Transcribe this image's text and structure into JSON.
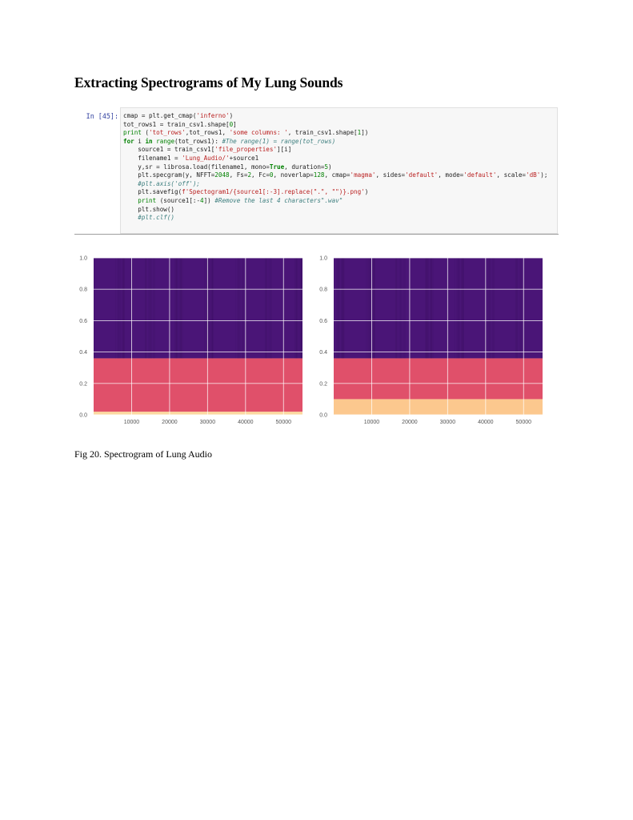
{
  "page": {
    "heading": "Extracting Spectrograms of My Lung Sounds",
    "caption": "Fig 20.  Spectrogram of Lung Audio"
  },
  "notebook": {
    "prompt": "In [45]:",
    "code_lines": [
      [
        {
          "t": "cmap = plt.get_cmap(",
          "c": ""
        },
        {
          "t": "'inferno'",
          "c": "st"
        },
        {
          "t": ")",
          "c": ""
        }
      ],
      [
        {
          "t": "tot_rows1 = train_csv1.shape[",
          "c": ""
        },
        {
          "t": "0",
          "c": "nm"
        },
        {
          "t": "]",
          "c": ""
        }
      ],
      [
        {
          "t": "print",
          "c": "bi"
        },
        {
          "t": " (",
          "c": ""
        },
        {
          "t": "'tot_rows'",
          "c": "st"
        },
        {
          "t": ",tot_rows1, ",
          "c": ""
        },
        {
          "t": "'some columns: '",
          "c": "st"
        },
        {
          "t": ", train_csv1.shape[",
          "c": ""
        },
        {
          "t": "1",
          "c": "nm"
        },
        {
          "t": "])",
          "c": ""
        }
      ],
      [
        {
          "t": "for",
          "c": "kw"
        },
        {
          "t": " i ",
          "c": ""
        },
        {
          "t": "in",
          "c": "kw"
        },
        {
          "t": " ",
          "c": ""
        },
        {
          "t": "range",
          "c": "bi"
        },
        {
          "t": "(tot_rows1): ",
          "c": ""
        },
        {
          "t": "#The range(1) = range(tot_rows)",
          "c": "cm"
        }
      ],
      [
        {
          "t": "    source1 = train_csv1[",
          "c": ""
        },
        {
          "t": "'file_properties'",
          "c": "st"
        },
        {
          "t": "][i]",
          "c": ""
        }
      ],
      [
        {
          "t": "    filename1 = ",
          "c": ""
        },
        {
          "t": "'Lung_Audio/'",
          "c": "st"
        },
        {
          "t": "+source1",
          "c": ""
        }
      ],
      [
        {
          "t": "    y,sr = librosa.load(filename1, mono=",
          "c": ""
        },
        {
          "t": "True",
          "c": "kw"
        },
        {
          "t": ", duration=",
          "c": ""
        },
        {
          "t": "5",
          "c": "nm"
        },
        {
          "t": ")",
          "c": ""
        }
      ],
      [
        {
          "t": "    plt.specgram(y, NFFT=",
          "c": ""
        },
        {
          "t": "2048",
          "c": "nm"
        },
        {
          "t": ", Fs=",
          "c": ""
        },
        {
          "t": "2",
          "c": "nm"
        },
        {
          "t": ", Fc=",
          "c": ""
        },
        {
          "t": "0",
          "c": "nm"
        },
        {
          "t": ", noverlap=",
          "c": ""
        },
        {
          "t": "128",
          "c": "nm"
        },
        {
          "t": ", cmap=",
          "c": ""
        },
        {
          "t": "'magma'",
          "c": "st"
        },
        {
          "t": ", sides=",
          "c": ""
        },
        {
          "t": "'default'",
          "c": "st"
        },
        {
          "t": ", mode=",
          "c": ""
        },
        {
          "t": "'default'",
          "c": "st"
        },
        {
          "t": ", scale=",
          "c": ""
        },
        {
          "t": "'dB'",
          "c": "st"
        },
        {
          "t": ");",
          "c": ""
        }
      ],
      [
        {
          "t": "    #plt.axis('off');",
          "c": "cm"
        }
      ],
      [
        {
          "t": "    plt.savefig(",
          "c": ""
        },
        {
          "t": "f'Spectogram1/{source1[:-3].replace(\".\", \"\")}.png'",
          "c": "st"
        },
        {
          "t": ")",
          "c": ""
        }
      ],
      [
        {
          "t": "    ",
          "c": ""
        },
        {
          "t": "print",
          "c": "bi"
        },
        {
          "t": " (source1[:-",
          "c": ""
        },
        {
          "t": "4",
          "c": "nm"
        },
        {
          "t": "]) ",
          "c": ""
        },
        {
          "t": "#Remove the last 4 characters\".wav\"",
          "c": "cm"
        }
      ],
      [
        {
          "t": "    plt.show()",
          "c": ""
        }
      ],
      [
        {
          "t": "    #plt.clf()",
          "c": "cm"
        }
      ]
    ]
  },
  "chart_data": [
    {
      "type": "heatmap",
      "title": "",
      "xlabel": "",
      "ylabel": "",
      "x_ticks": [
        10000,
        20000,
        30000,
        40000,
        50000
      ],
      "y_ticks": [
        0.0,
        0.2,
        0.4,
        0.6,
        0.8,
        1.0
      ],
      "y_tick_labels": [
        "0.0",
        "0.2",
        "0.4",
        "0.6",
        "0.8",
        "1.0"
      ],
      "xlim": [
        0,
        55000
      ],
      "ylim": [
        0,
        1.0
      ],
      "grid": true,
      "colormap": "magma",
      "bands": [
        {
          "from": 0.0,
          "to": 0.02,
          "color": "#fcd9a0"
        },
        {
          "from": 0.02,
          "to": 0.36,
          "color": "#e0506a"
        },
        {
          "from": 0.36,
          "to": 1.0,
          "color": "#4a1577"
        }
      ]
    },
    {
      "type": "heatmap",
      "title": "",
      "xlabel": "",
      "ylabel": "",
      "x_ticks": [
        10000,
        20000,
        30000,
        40000,
        50000
      ],
      "y_ticks": [
        0.0,
        0.2,
        0.4,
        0.6,
        0.8,
        1.0
      ],
      "y_tick_labels": [
        "0.0",
        "0.2",
        "0.4",
        "0.6",
        "0.8",
        "1.0"
      ],
      "xlim": [
        0,
        55000
      ],
      "ylim": [
        0,
        1.0
      ],
      "grid": true,
      "colormap": "magma",
      "bands": [
        {
          "from": 0.0,
          "to": 0.1,
          "color": "#fcc88e"
        },
        {
          "from": 0.1,
          "to": 0.36,
          "color": "#e0506a"
        },
        {
          "from": 0.36,
          "to": 1.0,
          "color": "#4a1577"
        }
      ]
    }
  ]
}
